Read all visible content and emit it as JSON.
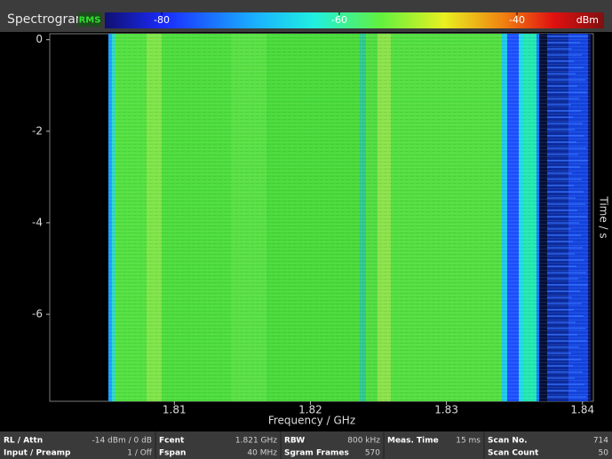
{
  "header": {
    "title": "Spectrogram",
    "detector": "RMS"
  },
  "colorbar": {
    "lim": [
      -86.4,
      -30.2
    ],
    "ticks": [
      -80,
      -60,
      -40
    ],
    "unit": "dBm"
  },
  "spectrogram": {
    "xlabel": "Frequency / GHz",
    "ylabel": "Time / s",
    "xlim": [
      1.80084,
      1.8408
    ],
    "xticks": [
      1.81,
      1.82,
      1.83,
      1.84
    ],
    "ylim": [
      -7.9,
      0.13
    ],
    "yticks": [
      0,
      -2,
      -4,
      -6
    ]
  },
  "status": [
    [
      [
        "RL / Attn",
        "-14 dBm / 0 dB"
      ],
      [
        "Input / Preamp",
        "1 / Off"
      ]
    ],
    [
      [
        "Fcent",
        "1.821 GHz"
      ],
      [
        "Fspan",
        "40 MHz"
      ]
    ],
    [
      [
        "RBW",
        "800 kHz"
      ],
      [
        "Sgram Frames",
        "570"
      ]
    ],
    [
      [
        "Meas. Time",
        "15 ms"
      ],
      [
        "",
        ""
      ]
    ],
    [
      [
        "Scan No.",
        "714"
      ],
      [
        "Scan Count",
        "50"
      ]
    ]
  ]
}
